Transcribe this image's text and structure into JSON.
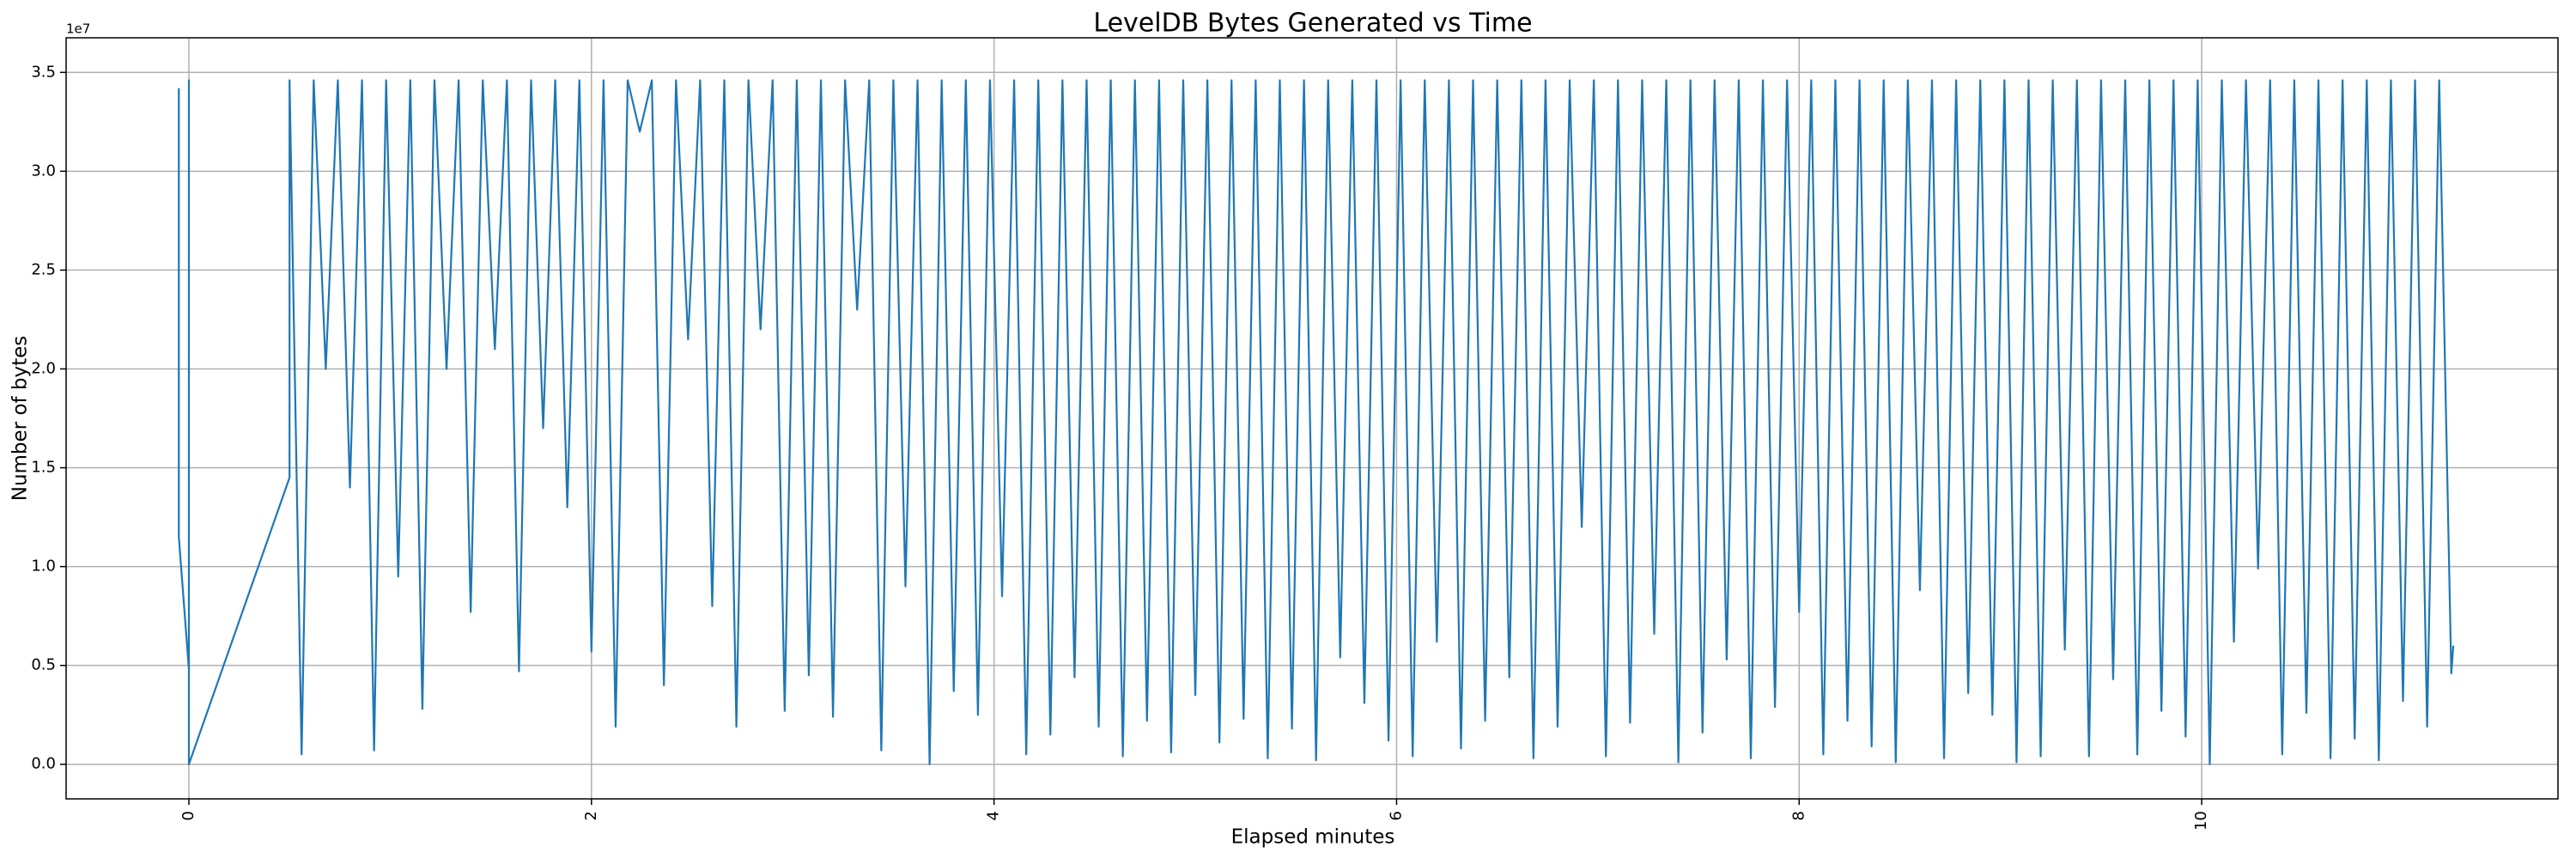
{
  "chart_data": {
    "type": "line",
    "title": "LevelDB Bytes Generated vs Time",
    "xlabel": "Elapsed minutes",
    "ylabel": "Number of bytes",
    "y_offset_label": "1e7",
    "color": "#1f77b4",
    "grid": true,
    "xlim": [
      -0.61,
      11.77
    ],
    "xticks": [
      0,
      2,
      4,
      6,
      8,
      10
    ],
    "ylim": [
      -1750000,
      36750000
    ],
    "yticks": [
      {
        "value": 0,
        "label": "0.0"
      },
      {
        "value": 5000000,
        "label": "0.5"
      },
      {
        "value": 10000000,
        "label": "1.0"
      },
      {
        "value": 15000000,
        "label": "1.5"
      },
      {
        "value": 20000000,
        "label": "2.0"
      },
      {
        "value": 25000000,
        "label": "2.5"
      },
      {
        "value": 30000000,
        "label": "3.0"
      },
      {
        "value": 35000000,
        "label": "3.5"
      }
    ],
    "x": [
      -0.05,
      -0.05,
      0,
      0,
      0,
      0.5,
      0.5,
      0.56,
      0.62,
      0.68,
      0.74,
      0.8,
      0.86,
      0.92,
      0.98,
      1.04,
      1.1,
      1.16,
      1.22,
      1.28,
      1.34,
      1.4,
      1.46,
      1.52,
      1.58,
      1.64,
      1.7,
      1.76,
      1.82,
      1.88,
      1.94,
      2,
      2.06,
      2.12,
      2.18,
      2.24,
      2.3,
      2.36,
      2.42,
      2.48,
      2.54,
      2.6,
      2.66,
      2.72,
      2.78,
      2.84,
      2.9,
      2.96,
      3.02,
      3.08,
      3.14,
      3.2,
      3.26,
      3.32,
      3.38,
      3.44,
      3.5,
      3.56,
      3.62,
      3.68,
      3.74,
      3.8,
      3.86,
      3.92,
      3.98,
      4.04,
      4.1,
      4.16,
      4.22,
      4.28,
      4.34,
      4.4,
      4.46,
      4.52,
      4.58,
      4.64,
      4.7,
      4.76,
      4.82,
      4.88,
      4.94,
      5,
      5.06,
      5.12,
      5.18,
      5.24,
      5.3,
      5.36,
      5.42,
      5.48,
      5.54,
      5.6,
      5.66,
      5.72,
      5.78,
      5.84,
      5.9,
      5.96,
      6.02,
      6.08,
      6.14,
      6.2,
      6.26,
      6.32,
      6.38,
      6.44,
      6.5,
      6.56,
      6.62,
      6.68,
      6.74,
      6.8,
      6.86,
      6.92,
      6.98,
      7.04,
      7.1,
      7.16,
      7.22,
      7.28,
      7.34,
      7.4,
      7.46,
      7.52,
      7.58,
      7.64,
      7.7,
      7.76,
      7.82,
      7.88,
      7.94,
      8,
      8.06,
      8.12,
      8.18,
      8.24,
      8.3,
      8.36,
      8.42,
      8.48,
      8.54,
      8.6,
      8.66,
      8.72,
      8.78,
      8.84,
      8.9,
      8.96,
      9.02,
      9.08,
      9.14,
      9.2,
      9.26,
      9.32,
      9.38,
      9.44,
      9.5,
      9.56,
      9.62,
      9.68,
      9.74,
      9.8,
      9.86,
      9.92,
      9.98,
      10.04,
      10.1,
      10.16,
      10.22,
      10.28,
      10.34,
      10.4,
      10.46,
      10.52,
      10.58,
      10.64,
      10.7,
      10.76,
      10.82,
      10.88,
      10.94,
      11,
      11.06,
      11.12,
      11.18,
      11.24,
      11.25
    ],
    "values": [
      34200000,
      11500000,
      4800000,
      34600000,
      0,
      14500000,
      34600000,
      500000,
      34600000,
      20000000,
      34600000,
      14000000,
      34600000,
      700000,
      34600000,
      9500000,
      34600000,
      2800000,
      34600000,
      20000000,
      34600000,
      7700000,
      34600000,
      21000000,
      34600000,
      4700000,
      34600000,
      17000000,
      34600000,
      13000000,
      34600000,
      5700000,
      34600000,
      1900000,
      34600000,
      32000000,
      34600000,
      4000000,
      34600000,
      21500000,
      34600000,
      8000000,
      34600000,
      1900000,
      34600000,
      22000000,
      34600000,
      2700000,
      34600000,
      4500000,
      34600000,
      2400000,
      34600000,
      23000000,
      34600000,
      700000,
      34600000,
      9000000,
      34600000,
      0,
      34600000,
      3700000,
      34600000,
      2500000,
      34600000,
      8500000,
      34600000,
      500000,
      34600000,
      1500000,
      34600000,
      4400000,
      34600000,
      1900000,
      34600000,
      400000,
      34600000,
      2200000,
      34600000,
      600000,
      34600000,
      3500000,
      34600000,
      1100000,
      34600000,
      2300000,
      34600000,
      300000,
      34600000,
      1800000,
      34600000,
      200000,
      34600000,
      5400000,
      34600000,
      3100000,
      34600000,
      1200000,
      34600000,
      400000,
      34600000,
      6200000,
      34600000,
      800000,
      34600000,
      2200000,
      34600000,
      4400000,
      34600000,
      300000,
      34600000,
      1900000,
      34600000,
      12000000,
      34600000,
      400000,
      34600000,
      2100000,
      34600000,
      6600000,
      34600000,
      100000,
      34600000,
      1600000,
      34600000,
      5300000,
      34600000,
      300000,
      34600000,
      2900000,
      34600000,
      7700000,
      34600000,
      500000,
      34600000,
      2200000,
      34600000,
      900000,
      34600000,
      100000,
      34600000,
      8800000,
      34600000,
      300000,
      34600000,
      3600000,
      34600000,
      2500000,
      34600000,
      100000,
      34600000,
      400000,
      34600000,
      5800000,
      34600000,
      400000,
      34600000,
      4300000,
      34600000,
      500000,
      34600000,
      2700000,
      34600000,
      1400000,
      34600000,
      0,
      34600000,
      6200000,
      34600000,
      9900000,
      34600000,
      500000,
      34600000,
      2600000,
      34600000,
      300000,
      34600000,
      1300000,
      34600000,
      200000,
      34600000,
      3200000,
      34600000,
      1900000,
      34600000,
      4600000,
      6000000
    ]
  }
}
